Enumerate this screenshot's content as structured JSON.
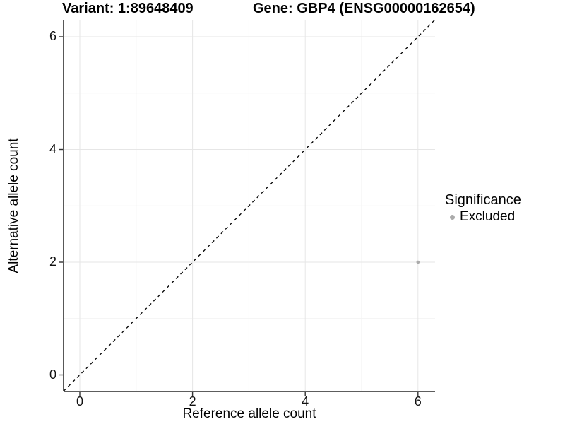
{
  "titles": {
    "variant": "Variant: 1:89648409",
    "gene": "Gene: GBP4 (ENSG00000162654)"
  },
  "axes": {
    "x_label": "Reference allele count",
    "y_label": "Alternative allele count"
  },
  "legend": {
    "title": "Significance",
    "items": [
      {
        "label": "Excluded",
        "color": "#ababab"
      }
    ]
  },
  "colors": {
    "grid_major": "#e6e6e6",
    "grid_minor": "#f2f2f2",
    "axis_line": "#464646",
    "tick": "#333333",
    "reference_line": "#000000",
    "point": "#ababab"
  },
  "chart_data": {
    "type": "scatter",
    "title": "Variant: 1:89648409   Gene: GBP4 (ENSG00000162654)",
    "xlabel": "Reference allele count",
    "ylabel": "Alternative allele count",
    "xlim": [
      -0.3,
      6.3
    ],
    "ylim": [
      -0.3,
      6.3
    ],
    "x_ticks": [
      0,
      2,
      4,
      6
    ],
    "y_ticks": [
      0,
      2,
      4,
      6
    ],
    "x_minor_ticks": [
      1,
      3,
      5
    ],
    "y_minor_ticks": [
      1,
      3,
      5
    ],
    "grid": true,
    "legend_position": "right",
    "series": [
      {
        "name": "Excluded",
        "points": [
          {
            "x": 6,
            "y": 2
          }
        ]
      }
    ],
    "reference_line": {
      "kind": "abline",
      "intercept": 0,
      "slope": 1,
      "style": "dashed"
    }
  }
}
